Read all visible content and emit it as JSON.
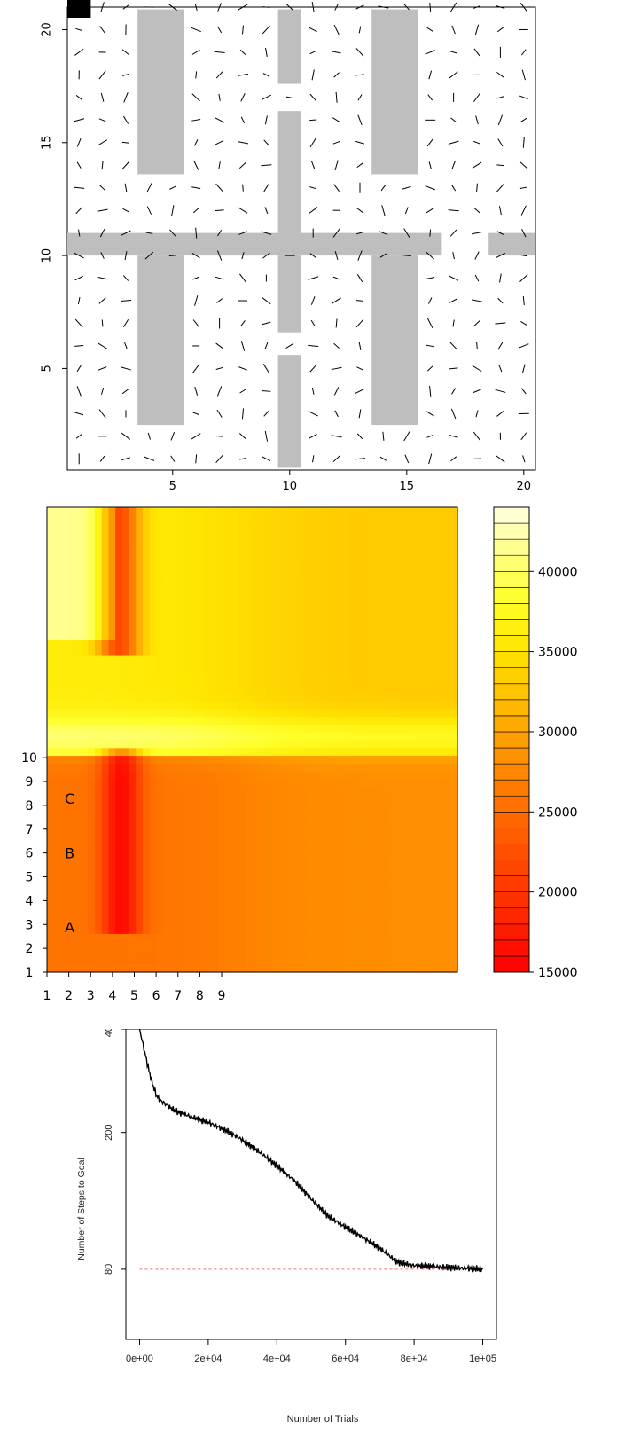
{
  "chart_data": [
    {
      "type": "vector-field",
      "x_ticks": [
        "5",
        "10",
        "15",
        "20"
      ],
      "y_ticks": [
        "5",
        "10",
        "15",
        "20"
      ],
      "xlim": [
        0.5,
        20.5
      ],
      "ylim": [
        0.5,
        21
      ],
      "goal_cell": [
        1,
        21
      ],
      "walls": [
        {
          "x": [
            3.5,
            5.5
          ],
          "y": [
            13.6,
            20.9
          ]
        },
        {
          "x": [
            9.5,
            10.5
          ],
          "y": [
            17.6,
            20.9
          ]
        },
        {
          "x": [
            9.5,
            10.5
          ],
          "y": [
            10.5,
            16.4
          ]
        },
        {
          "x": [
            13.5,
            15.5
          ],
          "y": [
            13.6,
            20.9
          ]
        },
        {
          "x": [
            0.5,
            16.5
          ],
          "y": [
            10.0,
            11.0
          ]
        },
        {
          "x": [
            18.5,
            20.5
          ],
          "y": [
            10.0,
            11.0
          ]
        },
        {
          "x": [
            3.5,
            5.5
          ],
          "y": [
            2.5,
            10.0
          ]
        },
        {
          "x": [
            9.5,
            10.5
          ],
          "y": [
            6.6,
            10.0
          ]
        },
        {
          "x": [
            9.5,
            10.5
          ],
          "y": [
            0.6,
            5.6
          ]
        },
        {
          "x": [
            13.5,
            15.5
          ],
          "y": [
            2.5,
            10.0
          ]
        }
      ],
      "colors": {
        "wall": "#bebebe",
        "arrow": "#000000",
        "goal": "#000000"
      }
    },
    {
      "type": "heatmap",
      "x_ticks": [
        "1",
        "2",
        "3",
        "4",
        "5",
        "6",
        "7",
        "8",
        "9"
      ],
      "y_ticks": [
        "1",
        "2",
        "3",
        "4",
        "5",
        "6",
        "7",
        "8",
        "9",
        "10"
      ],
      "xlim": [
        1,
        19.8
      ],
      "ylim": [
        1,
        20.5
      ],
      "annotations": [
        {
          "text": "C",
          "x": 2,
          "y": 8.3
        },
        {
          "text": "B",
          "x": 2,
          "y": 6.0
        },
        {
          "text": "A",
          "x": 2,
          "y": 2.9
        }
      ],
      "colorbar_ticks": [
        "15000",
        "20000",
        "25000",
        "30000",
        "35000",
        "40000"
      ],
      "colorbar_range": [
        15000,
        44000
      ],
      "colors": {
        "low": "#ff0000",
        "mid": "#ffa500",
        "high": "#ffff00",
        "top": "#ffffe0"
      }
    },
    {
      "type": "line",
      "xlabel": "Number of Trials",
      "ylabel": "Number of Steps to Goal",
      "x_ticks": [
        "0e+00",
        "2e+04",
        "4e+04",
        "6e+04",
        "8e+04",
        "1e+05"
      ],
      "y_ticks": [
        "80",
        "200",
        "400"
      ],
      "log_y": true,
      "xlim": [
        -4000,
        104000
      ],
      "ylim": [
        50,
        400
      ],
      "series": [
        {
          "x": [
            0,
            1000,
            2000,
            3000,
            4000,
            5000,
            6000,
            8000,
            10000,
            15000,
            20000,
            25000,
            30000,
            35000,
            40000,
            45000,
            50000,
            55000,
            60000,
            65000,
            70000,
            75000,
            80000,
            90000,
            100000
          ],
          "y": [
            400,
            360,
            325,
            295,
            272,
            255,
            248,
            240,
            232,
            222,
            214,
            203,
            190,
            175,
            160,
            145,
            128,
            114,
            106,
            99,
            92,
            84,
            82,
            81,
            80
          ]
        }
      ],
      "reference_line": {
        "y": 80,
        "color": "#ff6b6b"
      },
      "colors": {
        "line": "#000000"
      }
    }
  ]
}
